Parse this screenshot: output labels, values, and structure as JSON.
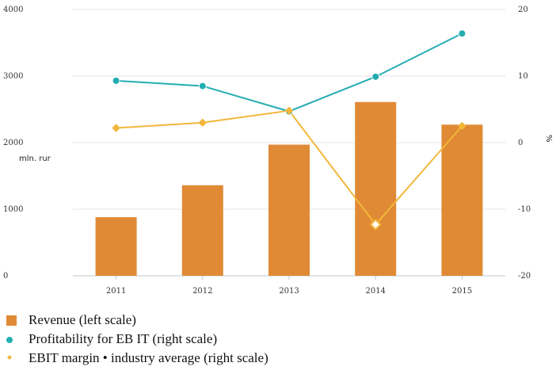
{
  "chart_data": {
    "type": "bar",
    "categories": [
      "2011",
      "2012",
      "2013",
      "2014",
      "2015"
    ],
    "y_left": {
      "label": "mln. rur",
      "range": [
        0,
        4000
      ],
      "ticks": [
        "0",
        "1000",
        "2000",
        "3000",
        "4000"
      ]
    },
    "y_right": {
      "label": "%",
      "range": [
        -20,
        20
      ],
      "ticks": [
        "-20",
        "-10",
        "0",
        "10",
        "20"
      ]
    },
    "grid": true,
    "legend_position": "bottom-left",
    "series": [
      {
        "name": "Revenue (left scale)",
        "type": "bar",
        "axis": "left",
        "color": "#e08a35",
        "values": [
          880,
          1360,
          1970,
          2610,
          2270
        ]
      },
      {
        "name": "Profitability for EB IT (right scale)",
        "type": "line",
        "axis": "right",
        "color": "#23adb3",
        "marker": "circle",
        "values": [
          9.3,
          8.5,
          4.7,
          9.9,
          16.4
        ]
      },
      {
        "name": "EBIT margin • industry average (right scale)",
        "type": "line",
        "axis": "right",
        "color": "#f2b73a",
        "marker": "diamond",
        "values": [
          2.2,
          3.0,
          4.8,
          -12.3,
          2.5
        ]
      }
    ]
  }
}
